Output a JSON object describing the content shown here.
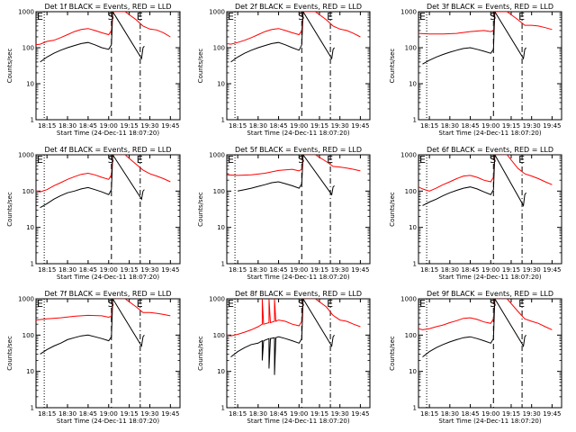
{
  "chart_data": [
    {
      "type": "line",
      "title": "Det 1f BLACK = Events, RED = LLD",
      "xlabel": "Start Time (24-Dec-11 18:07:20)",
      "ylabel": "Counts/sec",
      "yscale": "log",
      "ylim": [
        1,
        1000
      ],
      "y_ticks": [
        "1",
        "10",
        "100",
        "1000"
      ],
      "x_ticks": [
        "18:15",
        "18:30",
        "18:45",
        "19:00",
        "19:15",
        "19:30",
        "19:45"
      ],
      "markers": [
        "E",
        "S",
        "E"
      ],
      "series": [
        {
          "color": "#ff0000",
          "x": [
            "18:07",
            "18:10",
            "18:15",
            "18:20",
            "18:25",
            "18:30",
            "18:35",
            "18:40",
            "18:45",
            "18:50",
            "18:55",
            "19:00",
            "19:02",
            "19:03",
            "19:12",
            "19:20",
            "19:25",
            "19:30",
            "19:35",
            "19:40",
            "19:45"
          ],
          "y": [
            120,
            125,
            150,
            160,
            190,
            230,
            280,
            320,
            340,
            300,
            260,
            230,
            300,
            1000,
            1000,
            600,
            400,
            330,
            310,
            260,
            200
          ]
        },
        {
          "color": "#000000",
          "x": [
            "18:10",
            "18:15",
            "18:20",
            "18:25",
            "18:30",
            "18:35",
            "18:40",
            "18:45",
            "18:50",
            "18:55",
            "19:00",
            "19:02",
            "19:03",
            "19:24",
            "19:25",
            "19:26"
          ],
          "y": [
            40,
            55,
            70,
            85,
            100,
            115,
            130,
            140,
            120,
            100,
            90,
            120,
            1000,
            50,
            100,
            110
          ]
        }
      ]
    },
    {
      "type": "line",
      "title": "Det 2f BLACK = Events, RED = LLD",
      "xlabel": "Start Time (24-Dec-11 18:07:20)",
      "ylabel": "Counts/sec",
      "yscale": "log",
      "ylim": [
        1,
        1000
      ],
      "y_ticks": [
        "1",
        "10",
        "100",
        "1000"
      ],
      "x_ticks": [
        "18:15",
        "18:30",
        "18:45",
        "19:00",
        "19:15",
        "19:30",
        "19:45"
      ],
      "markers": [
        "E",
        "S",
        "E"
      ],
      "series": [
        {
          "color": "#ff0000",
          "x": [
            "18:07",
            "18:10",
            "18:15",
            "18:20",
            "18:25",
            "18:30",
            "18:35",
            "18:40",
            "18:45",
            "18:50",
            "18:55",
            "19:00",
            "19:02",
            "19:03",
            "19:12",
            "19:20",
            "19:25",
            "19:30",
            "19:35",
            "19:40",
            "19:45"
          ],
          "y": [
            130,
            125,
            140,
            160,
            190,
            230,
            280,
            320,
            340,
            300,
            260,
            230,
            300,
            1000,
            1000,
            600,
            400,
            330,
            300,
            250,
            200
          ]
        },
        {
          "color": "#000000",
          "x": [
            "18:10",
            "18:15",
            "18:20",
            "18:25",
            "18:30",
            "18:35",
            "18:40",
            "18:45",
            "18:50",
            "18:55",
            "19:00",
            "19:02",
            "19:03",
            "19:24",
            "19:25",
            "19:26"
          ],
          "y": [
            40,
            55,
            70,
            85,
            100,
            115,
            130,
            140,
            120,
            100,
            85,
            120,
            1000,
            50,
            90,
            100
          ]
        }
      ]
    },
    {
      "type": "line",
      "title": "Det 3f BLACK = Events, RED = LLD",
      "xlabel": "Start Time (24-Dec-11 18:07:20)",
      "ylabel": "Counts/sec",
      "yscale": "log",
      "ylim": [
        1,
        1000
      ],
      "y_ticks": [
        "1",
        "10",
        "100",
        "1000"
      ],
      "x_ticks": [
        "18:15",
        "18:30",
        "18:45",
        "19:00",
        "19:15",
        "19:30",
        "19:45"
      ],
      "markers": [
        "E",
        "S",
        "E"
      ],
      "series": [
        {
          "color": "#ff0000",
          "x": [
            "18:07",
            "18:15",
            "18:25",
            "18:35",
            "18:45",
            "18:55",
            "19:00",
            "19:02",
            "19:03",
            "19:12",
            "19:20",
            "19:25",
            "19:30",
            "19:35",
            "19:40",
            "19:45"
          ],
          "y": [
            250,
            240,
            240,
            250,
            280,
            300,
            280,
            300,
            1000,
            1000,
            600,
            420,
            420,
            400,
            360,
            320
          ]
        },
        {
          "color": "#000000",
          "x": [
            "18:10",
            "18:15",
            "18:20",
            "18:25",
            "18:30",
            "18:35",
            "18:40",
            "18:45",
            "18:50",
            "18:55",
            "19:00",
            "19:02",
            "19:03",
            "19:24",
            "19:25",
            "19:26"
          ],
          "y": [
            35,
            45,
            55,
            65,
            75,
            85,
            95,
            100,
            90,
            80,
            70,
            90,
            1000,
            50,
            90,
            100
          ]
        }
      ]
    },
    {
      "type": "line",
      "title": "Det 4f BLACK = Events, RED = LLD",
      "xlabel": "Start Time (24-Dec-11 18:07:20)",
      "ylabel": "Counts/sec",
      "yscale": "log",
      "ylim": [
        1,
        1000
      ],
      "y_ticks": [
        "1",
        "10",
        "100",
        "1000"
      ],
      "x_ticks": [
        "18:15",
        "18:30",
        "18:45",
        "19:00",
        "19:15",
        "19:30",
        "19:45"
      ],
      "markers": [
        "E",
        "S",
        "E"
      ],
      "series": [
        {
          "color": "#ff0000",
          "x": [
            "18:07",
            "18:10",
            "18:15",
            "18:20",
            "18:25",
            "18:30",
            "18:35",
            "18:40",
            "18:45",
            "18:50",
            "18:55",
            "19:00",
            "19:02",
            "19:03",
            "19:12",
            "19:20",
            "19:25",
            "19:30",
            "19:35",
            "19:40",
            "19:45"
          ],
          "y": [
            100,
            95,
            110,
            140,
            170,
            210,
            250,
            290,
            310,
            280,
            240,
            210,
            280,
            1000,
            1000,
            550,
            380,
            300,
            260,
            220,
            180
          ]
        },
        {
          "color": "#000000",
          "x": [
            "18:10",
            "18:15",
            "18:20",
            "18:25",
            "18:30",
            "18:35",
            "18:40",
            "18:45",
            "18:50",
            "18:55",
            "19:00",
            "19:02",
            "19:03",
            "19:24",
            "19:25",
            "19:26"
          ],
          "y": [
            35,
            45,
            60,
            75,
            90,
            100,
            115,
            125,
            110,
            95,
            80,
            110,
            1000,
            60,
            100,
            110
          ]
        }
      ]
    },
    {
      "type": "line",
      "title": "Det 5f BLACK = Events, RED = LLD",
      "xlabel": "Start Time (24-Dec-11 18:07:20)",
      "ylabel": "Counts/sec",
      "yscale": "log",
      "ylim": [
        1,
        1000
      ],
      "y_ticks": [
        "1",
        "10",
        "100",
        "1000"
      ],
      "x_ticks": [
        "18:15",
        "18:30",
        "18:45",
        "19:00",
        "19:15",
        "19:30",
        "19:45"
      ],
      "markers": [
        "E",
        "S",
        "E"
      ],
      "series": [
        {
          "color": "#ff0000",
          "x": [
            "18:07",
            "18:15",
            "18:25",
            "18:35",
            "18:45",
            "18:55",
            "19:00",
            "19:02",
            "19:03",
            "19:12",
            "19:20",
            "19:25",
            "19:30",
            "19:35",
            "19:40",
            "19:45"
          ],
          "y": [
            280,
            270,
            280,
            310,
            370,
            400,
            360,
            400,
            1000,
            1000,
            650,
            480,
            460,
            430,
            400,
            360
          ]
        },
        {
          "color": "#000000",
          "x": [
            "18:15",
            "18:20",
            "18:25",
            "18:30",
            "18:35",
            "18:40",
            "18:45",
            "18:50",
            "18:55",
            "19:00",
            "19:02",
            "19:03",
            "19:24",
            "19:25",
            "19:26"
          ],
          "y": [
            100,
            110,
            120,
            135,
            150,
            170,
            180,
            160,
            140,
            120,
            160,
            1000,
            80,
            130,
            140
          ]
        }
      ]
    },
    {
      "type": "line",
      "title": "Det 6f BLACK = Events, RED = LLD",
      "xlabel": "Start Time (24-Dec-11 18:07:20)",
      "ylabel": "Counts/sec",
      "yscale": "log",
      "ylim": [
        1,
        1000
      ],
      "y_ticks": [
        "1",
        "10",
        "100",
        "1000"
      ],
      "x_ticks": [
        "18:15",
        "18:30",
        "18:45",
        "19:00",
        "19:15",
        "19:30",
        "19:45"
      ],
      "markers": [
        "E",
        "S",
        "E"
      ],
      "series": [
        {
          "color": "#ff0000",
          "x": [
            "18:07",
            "18:10",
            "18:15",
            "18:20",
            "18:25",
            "18:30",
            "18:35",
            "18:40",
            "18:45",
            "18:50",
            "18:55",
            "19:00",
            "19:02",
            "19:03",
            "19:12",
            "19:20",
            "19:25",
            "19:30",
            "19:35",
            "19:40",
            "19:45"
          ],
          "y": [
            130,
            115,
            100,
            120,
            150,
            180,
            220,
            260,
            270,
            240,
            200,
            180,
            240,
            1000,
            1000,
            420,
            300,
            260,
            220,
            180,
            150
          ]
        },
        {
          "color": "#000000",
          "x": [
            "18:10",
            "18:15",
            "18:20",
            "18:25",
            "18:30",
            "18:35",
            "18:40",
            "18:45",
            "18:50",
            "18:55",
            "19:00",
            "19:02",
            "19:03",
            "19:24",
            "19:25",
            "19:26"
          ],
          "y": [
            40,
            50,
            60,
            75,
            90,
            105,
            120,
            130,
            115,
            95,
            80,
            110,
            1000,
            40,
            80,
            90
          ]
        }
      ]
    },
    {
      "type": "line",
      "title": "Det 7f BLACK = Events, RED = LLD",
      "xlabel": "Start Time (24-Dec-11 18:07:20)",
      "ylabel": "Counts/sec",
      "yscale": "log",
      "ylim": [
        1,
        1000
      ],
      "y_ticks": [
        "1",
        "10",
        "100",
        "1000"
      ],
      "x_ticks": [
        "18:15",
        "18:30",
        "18:45",
        "19:00",
        "19:15",
        "19:30",
        "19:45"
      ],
      "markers": [
        "E",
        "S",
        "E"
      ],
      "series": [
        {
          "color": "#ff0000",
          "x": [
            "18:07",
            "18:15",
            "18:25",
            "18:35",
            "18:45",
            "18:55",
            "19:00",
            "19:02",
            "19:03",
            "19:12",
            "19:20",
            "19:25",
            "19:30",
            "19:35",
            "19:40",
            "19:45"
          ],
          "y": [
            260,
            280,
            300,
            330,
            350,
            340,
            310,
            330,
            1000,
            1000,
            600,
            420,
            420,
            400,
            370,
            340
          ]
        },
        {
          "color": "#000000",
          "x": [
            "18:10",
            "18:15",
            "18:20",
            "18:25",
            "18:30",
            "18:35",
            "18:40",
            "18:45",
            "18:50",
            "18:55",
            "19:00",
            "19:02",
            "19:03",
            "19:24",
            "19:25",
            "19:26"
          ],
          "y": [
            30,
            40,
            50,
            60,
            75,
            85,
            95,
            100,
            90,
            80,
            70,
            90,
            1000,
            50,
            90,
            100
          ]
        }
      ]
    },
    {
      "type": "line",
      "title": "Det 8f BLACK = Events, RED = LLD",
      "xlabel": "Start Time (24-Dec-11 18:07:20)",
      "ylabel": "Counts/sec",
      "yscale": "log",
      "ylim": [
        1,
        1000
      ],
      "y_ticks": [
        "1",
        "10",
        "100",
        "1000"
      ],
      "x_ticks": [
        "18:15",
        "18:30",
        "18:45",
        "19:00",
        "19:15",
        "19:30",
        "19:45"
      ],
      "markers": [
        "E",
        "S",
        "E"
      ],
      "series": [
        {
          "color": "#ff0000",
          "x": [
            "18:07",
            "18:10",
            "18:15",
            "18:20",
            "18:25",
            "18:30",
            "18:33",
            "18:33",
            "18:34",
            "18:38",
            "18:38",
            "18:39",
            "18:42",
            "18:42",
            "18:43",
            "18:45",
            "18:50",
            "18:55",
            "19:00",
            "19:02",
            "19:03",
            "19:12",
            "19:20",
            "19:25",
            "19:30",
            "19:35",
            "19:40",
            "19:45"
          ],
          "y": [
            100,
            95,
            105,
            120,
            140,
            170,
            200,
            1000,
            200,
            220,
            1000,
            220,
            240,
            1000,
            240,
            260,
            240,
            200,
            180,
            240,
            1000,
            1000,
            600,
            350,
            260,
            240,
            200,
            170
          ]
        },
        {
          "color": "#000000",
          "x": [
            "18:10",
            "18:15",
            "18:20",
            "18:25",
            "18:30",
            "18:33",
            "18:33",
            "18:34",
            "18:38",
            "18:38",
            "18:39",
            "18:42",
            "18:42",
            "18:43",
            "18:45",
            "18:50",
            "18:55",
            "19:00",
            "19:02",
            "19:03",
            "19:24",
            "19:25",
            "19:26"
          ],
          "y": [
            25,
            35,
            45,
            55,
            60,
            70,
            20,
            70,
            80,
            12,
            80,
            85,
            8,
            85,
            90,
            80,
            70,
            60,
            80,
            1000,
            50,
            90,
            100
          ]
        }
      ]
    },
    {
      "type": "line",
      "title": "Det 9f BLACK = Events, RED = LLD",
      "xlabel": "Start Time (24-Dec-11 18:07:20)",
      "ylabel": "Counts/sec",
      "yscale": "log",
      "ylim": [
        1,
        1000
      ],
      "y_ticks": [
        "1",
        "10",
        "100",
        "1000"
      ],
      "x_ticks": [
        "18:15",
        "18:30",
        "18:45",
        "19:00",
        "19:15",
        "19:30",
        "19:45"
      ],
      "markers": [
        "E",
        "S",
        "E"
      ],
      "series": [
        {
          "color": "#ff0000",
          "x": [
            "18:07",
            "18:10",
            "18:15",
            "18:20",
            "18:25",
            "18:30",
            "18:35",
            "18:40",
            "18:45",
            "18:50",
            "18:55",
            "19:00",
            "19:02",
            "19:03",
            "19:12",
            "19:20",
            "19:25",
            "19:30",
            "19:35",
            "19:40",
            "19:45"
          ],
          "y": [
            150,
            140,
            150,
            170,
            190,
            220,
            250,
            290,
            300,
            270,
            230,
            210,
            280,
            1000,
            1000,
            450,
            280,
            240,
            210,
            170,
            140
          ]
        },
        {
          "color": "#000000",
          "x": [
            "18:10",
            "18:15",
            "18:20",
            "18:25",
            "18:30",
            "18:35",
            "18:40",
            "18:45",
            "18:50",
            "18:55",
            "19:00",
            "19:02",
            "19:03",
            "19:24",
            "19:25",
            "19:26"
          ],
          "y": [
            25,
            35,
            45,
            55,
            65,
            75,
            85,
            90,
            80,
            70,
            60,
            80,
            1000,
            50,
            90,
            100
          ]
        }
      ]
    }
  ]
}
